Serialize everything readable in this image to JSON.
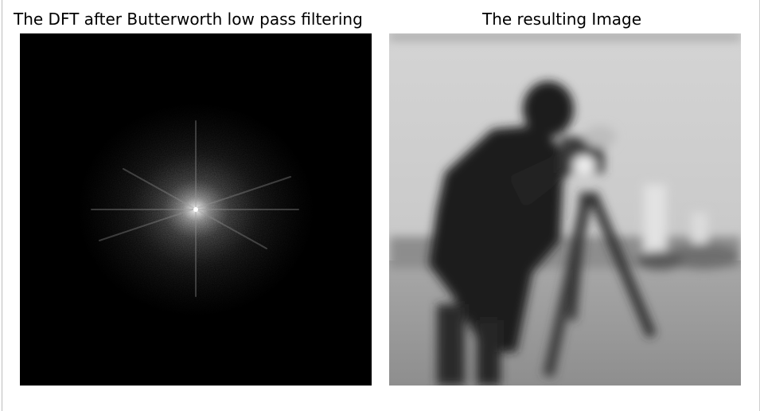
{
  "figure": {
    "left_title": "The DFT after Butterworth low pass filtering",
    "right_title": "The resulting Image"
  },
  "colors": {
    "background": "#ffffff",
    "spectrum_background": "#000000",
    "image_sky": "#c8c8c8",
    "image_ground": "#9a9a9a"
  }
}
